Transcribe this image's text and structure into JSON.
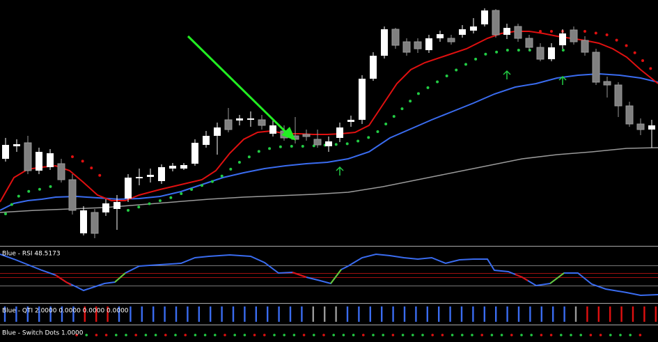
{
  "panels": [
    {
      "label": "Blue - RSI 48.5173"
    },
    {
      "label": "Blue - QTI 2.0000 0.0000 0.0000 0.0000"
    },
    {
      "label": "Blue - Switch Dots 1.0000"
    }
  ]
}
